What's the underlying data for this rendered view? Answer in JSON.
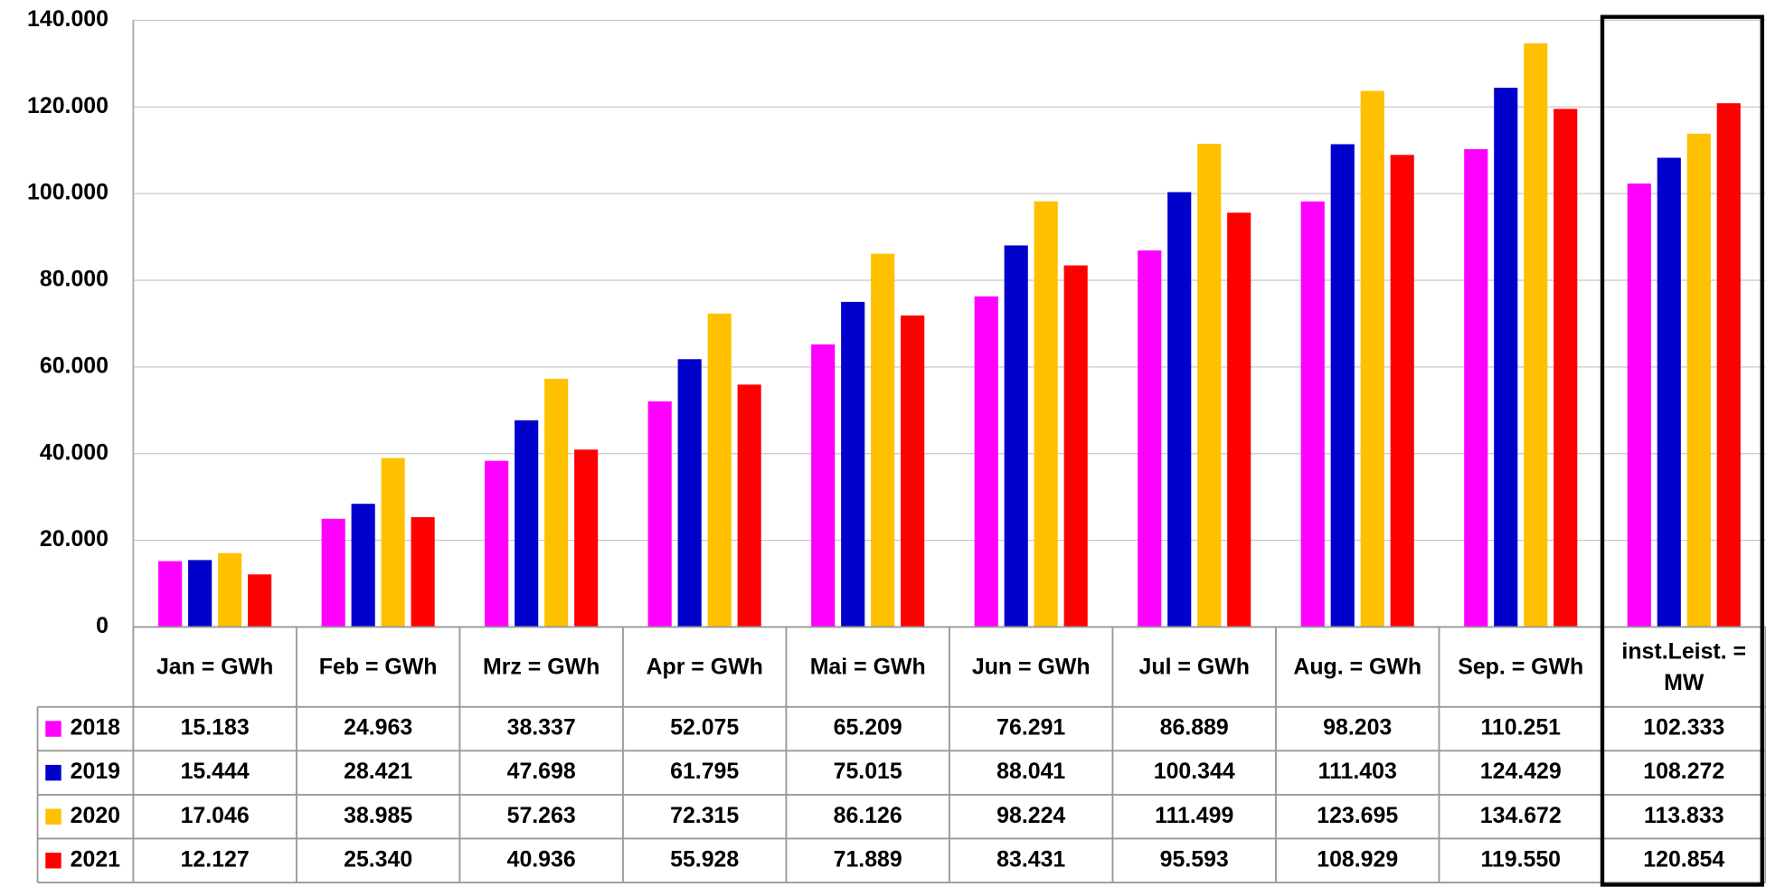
{
  "chart_data": {
    "type": "bar",
    "categories": [
      "Jan = GWh",
      "Feb = GWh",
      "Mrz = GWh",
      "Apr = GWh",
      "Mai = GWh",
      "Jun = GWh",
      "Jul = GWh",
      "Aug. = GWh",
      "Sep. = GWh",
      "inst.Leist. = MW"
    ],
    "series": [
      {
        "name": "2018",
        "color": "#ff00ff",
        "values": [
          15183,
          24963,
          38337,
          52075,
          65209,
          76291,
          86889,
          98203,
          110251,
          102333
        ],
        "value_labels": [
          "15.183",
          "24.963",
          "38.337",
          "52.075",
          "65.209",
          "76.291",
          "86.889",
          "98.203",
          "110.251",
          "102.333"
        ]
      },
      {
        "name": "2019",
        "color": "#0000cc",
        "values": [
          15444,
          28421,
          47698,
          61795,
          75015,
          88041,
          100344,
          111403,
          124429,
          108272
        ],
        "value_labels": [
          "15.444",
          "28.421",
          "47.698",
          "61.795",
          "75.015",
          "88.041",
          "100.344",
          "111.403",
          "124.429",
          "108.272"
        ]
      },
      {
        "name": "2020",
        "color": "#ffc000",
        "values": [
          17046,
          38985,
          57263,
          72315,
          86126,
          98224,
          111499,
          123695,
          134672,
          113833
        ],
        "value_labels": [
          "17.046",
          "38.985",
          "57.263",
          "72.315",
          "86.126",
          "98.224",
          "111.499",
          "123.695",
          "134.672",
          "113.833"
        ]
      },
      {
        "name": "2021",
        "color": "#ff0000",
        "values": [
          12127,
          25340,
          40936,
          55928,
          71889,
          83431,
          95593,
          108929,
          119550,
          120854
        ],
        "value_labels": [
          "12.127",
          "25.340",
          "40.936",
          "55.928",
          "71.889",
          "83.431",
          "95.593",
          "108.929",
          "119.550",
          "120.854"
        ]
      }
    ],
    "ylim": [
      0,
      140000
    ],
    "yticks": [
      0,
      {
        "value": 20000,
        "label": "20.000"
      },
      {
        "value": 40000,
        "label": "40.000"
      },
      {
        "value": 60000,
        "label": "60.000"
      },
      {
        "value": 80000,
        "label": "80.000"
      },
      {
        "value": 100000,
        "label": "100.000"
      },
      {
        "value": 120000,
        "label": "120.000"
      },
      {
        "value": 140000,
        "label": "140.000"
      }
    ],
    "grid": true
  }
}
